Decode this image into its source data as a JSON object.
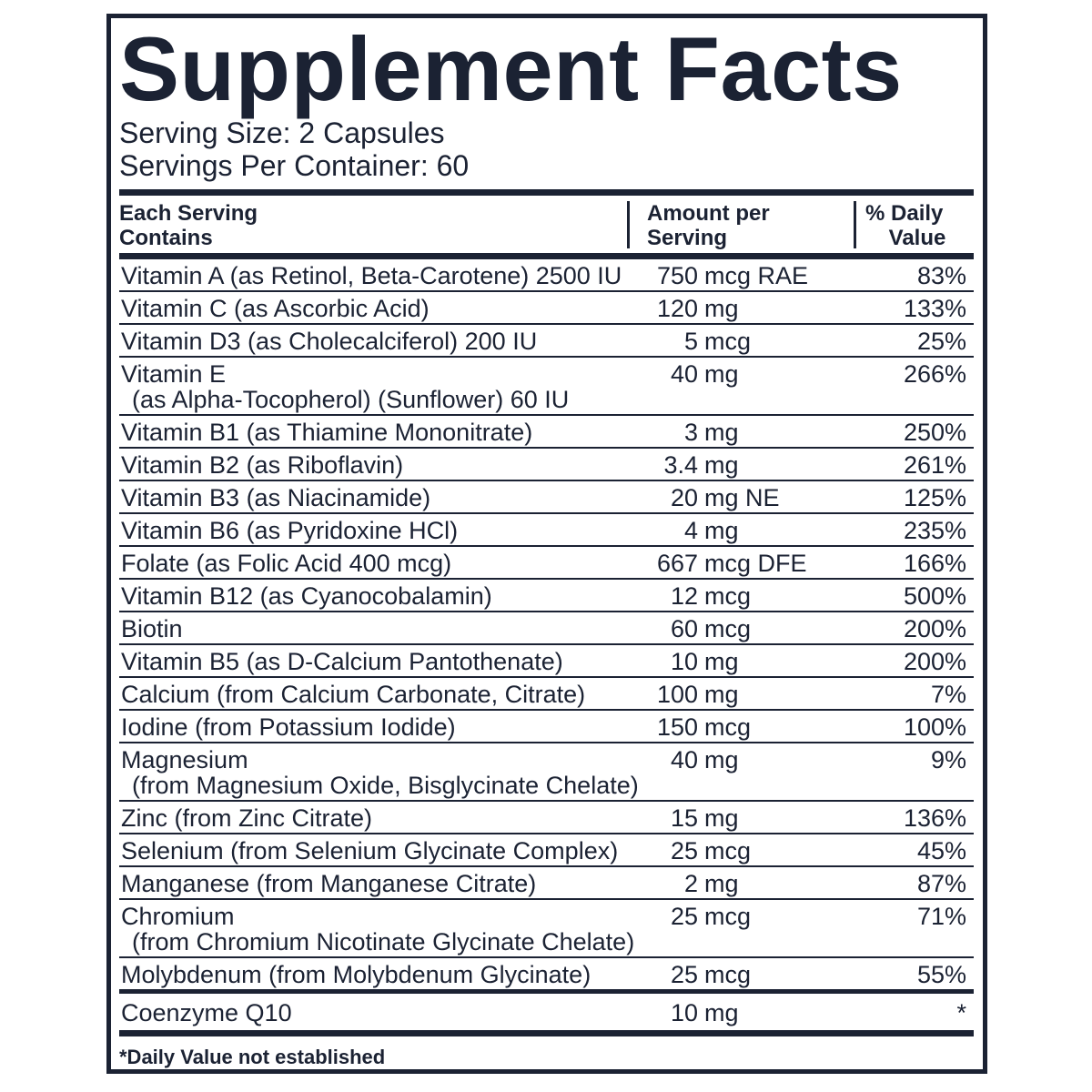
{
  "label": {
    "title": "Supplement Facts",
    "serving_size": "Serving Size: 2 Capsules",
    "servings_per_container": "Servings Per Container: 60",
    "header": {
      "name": [
        "Each Serving",
        "Contains"
      ],
      "amount": [
        "Amount per",
        "Serving"
      ],
      "dv": [
        "% Daily",
        "Value"
      ]
    },
    "rows": [
      {
        "name": "Vitamin A (as Retinol, Beta-Carotene) 2500 IU",
        "qty": "750",
        "unit": "mcg RAE",
        "dv": "83%"
      },
      {
        "name": "Vitamin C (as Ascorbic Acid)",
        "qty": "120",
        "unit": "mg",
        "dv": "133%"
      },
      {
        "name": "Vitamin D3 (as Cholecalciferol) 200 IU",
        "qty": "5",
        "unit": "mcg",
        "dv": "25%"
      },
      {
        "name": "Vitamin E",
        "detail": "(as Alpha-Tocopherol) (Sunflower) 60 IU",
        "qty": "40",
        "unit": "mg",
        "dv": "266%"
      },
      {
        "name": "Vitamin B1 (as Thiamine Mononitrate)",
        "qty": "3",
        "unit": "mg",
        "dv": "250%"
      },
      {
        "name": "Vitamin B2 (as Riboflavin)",
        "qty": "3.4",
        "unit": "mg",
        "dv": "261%"
      },
      {
        "name": "Vitamin B3 (as Niacinamide)",
        "qty": "20",
        "unit": "mg NE",
        "dv": "125%"
      },
      {
        "name": "Vitamin B6 (as Pyridoxine HCl)",
        "qty": "4",
        "unit": "mg",
        "dv": "235%"
      },
      {
        "name": "Folate (as Folic Acid 400 mcg)",
        "qty": "667",
        "unit": "mcg DFE",
        "dv": "166%"
      },
      {
        "name": "Vitamin B12 (as Cyanocobalamin)",
        "qty": "12",
        "unit": "mcg",
        "dv": "500%"
      },
      {
        "name": "Biotin",
        "qty": "60",
        "unit": "mcg",
        "dv": "200%"
      },
      {
        "name": "Vitamin B5 (as D-Calcium Pantothenate)",
        "qty": "10",
        "unit": "mg",
        "dv": "200%"
      },
      {
        "name": "Calcium (from Calcium Carbonate, Citrate)",
        "qty": "100",
        "unit": "mg",
        "dv": "7%"
      },
      {
        "name": "Iodine (from Potassium Iodide)",
        "qty": "150",
        "unit": "mcg",
        "dv": "100%"
      },
      {
        "name": "Magnesium",
        "detail": "(from Magnesium Oxide, Bisglycinate Chelate)",
        "qty": "40",
        "unit": "mg",
        "dv": "9%"
      },
      {
        "name": "Zinc (from Zinc Citrate)",
        "qty": "15",
        "unit": "mg",
        "dv": "136%"
      },
      {
        "name": "Selenium (from Selenium Glycinate Complex)",
        "qty": "25",
        "unit": "mcg",
        "dv": "45%"
      },
      {
        "name": "Manganese (from Manganese Citrate)",
        "qty": "2",
        "unit": "mg",
        "dv": "87%"
      },
      {
        "name": "Chromium",
        "detail": "(from Chromium Nicotinate Glycinate Chelate)",
        "qty": "25",
        "unit": "mcg",
        "dv": "71%"
      },
      {
        "name": "Molybdenum (from Molybdenum Glycinate)",
        "qty": "25",
        "unit": "mcg",
        "dv": "55%"
      },
      {
        "name": "Coenzyme Q10",
        "qty": "10",
        "unit": "mg",
        "dv": "*"
      }
    ],
    "footnote": "*Daily Value not established"
  }
}
